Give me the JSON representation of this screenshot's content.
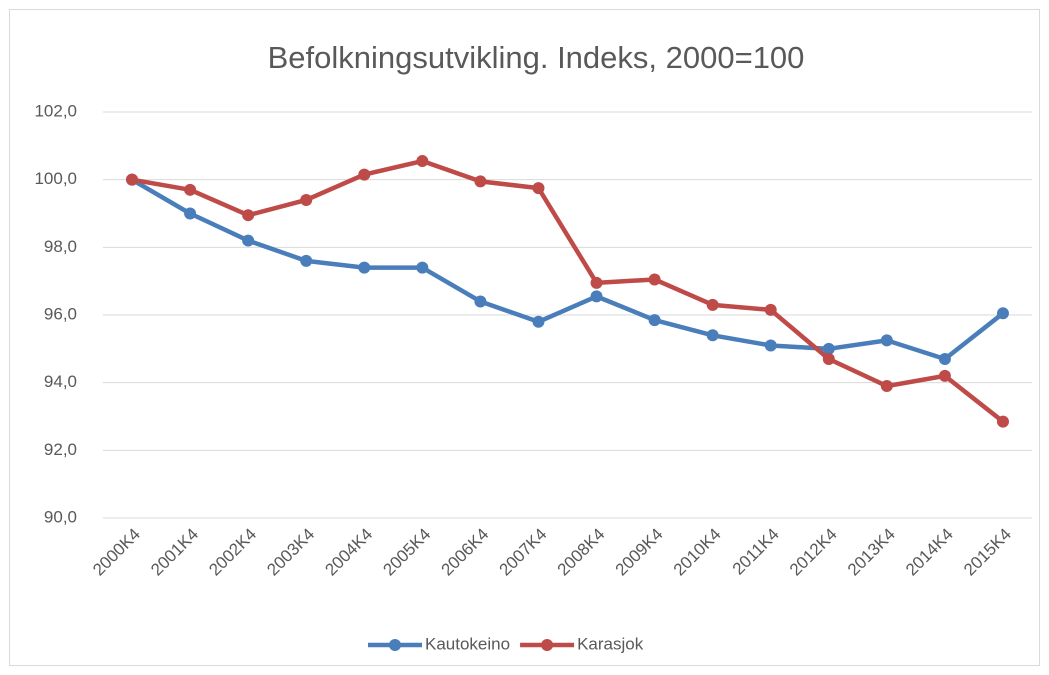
{
  "chart_data": {
    "type": "line",
    "title": "Befolkningsutvikling. Indeks, 2000=100",
    "categories": [
      "2000K4",
      "2001K4",
      "2002K4",
      "2003K4",
      "2004K4",
      "2005K4",
      "2006K4",
      "2007K4",
      "2008K4",
      "2009K4",
      "2010K4",
      "2011K4",
      "2012K4",
      "2013K4",
      "2014K4",
      "2015K4"
    ],
    "series": [
      {
        "name": "Kautokeino",
        "color": "#4a7ebb",
        "values": [
          100.0,
          99.0,
          98.2,
          97.6,
          97.4,
          97.4,
          96.4,
          95.8,
          96.55,
          95.85,
          95.4,
          95.1,
          95.0,
          95.25,
          94.7,
          96.05
        ]
      },
      {
        "name": "Karasjok",
        "color": "#be4b48",
        "values": [
          100.0,
          99.7,
          98.95,
          99.4,
          100.15,
          100.55,
          99.95,
          99.75,
          96.95,
          97.05,
          96.3,
          96.15,
          94.7,
          93.9,
          94.2,
          92.85
        ]
      }
    ],
    "ylim": [
      90,
      102
    ],
    "yticks": [
      {
        "value": 90,
        "label": "90,0"
      },
      {
        "value": 92,
        "label": "92,0"
      },
      {
        "value": 94,
        "label": "94,0"
      },
      {
        "value": 96,
        "label": "96,0"
      },
      {
        "value": 98,
        "label": "98,0"
      },
      {
        "value": 100,
        "label": "100,0"
      },
      {
        "value": 102,
        "label": "102,0"
      }
    ],
    "grid": true,
    "legend": "bottom"
  }
}
